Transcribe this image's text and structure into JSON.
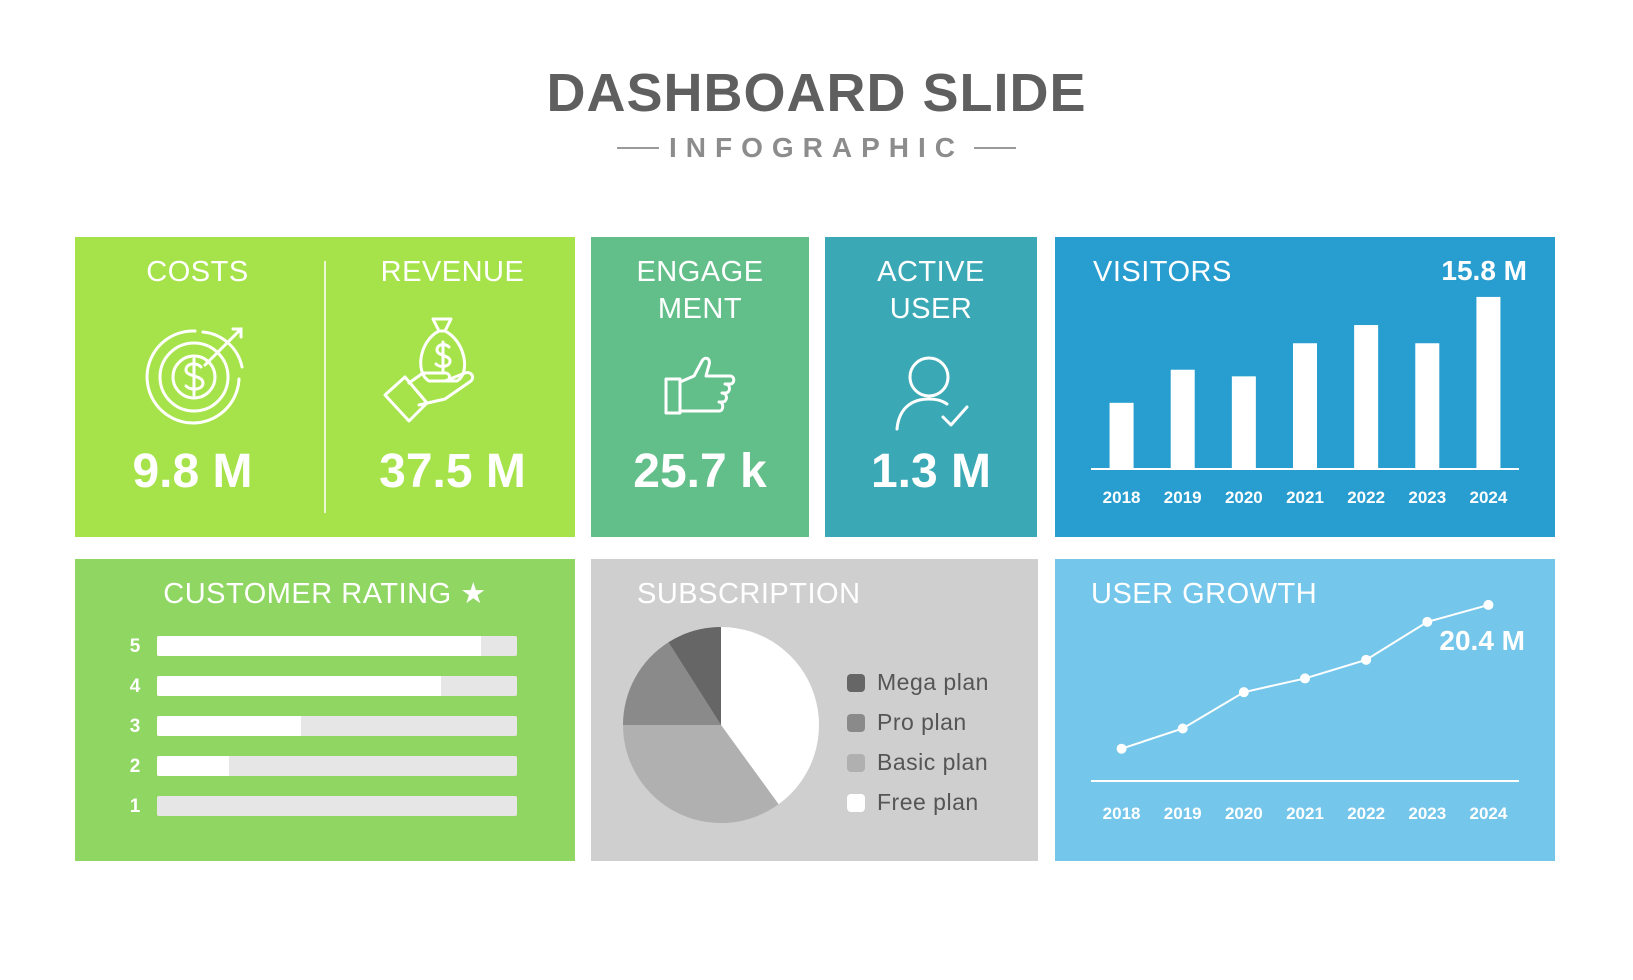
{
  "header": {
    "title": "DASHBOARD SLIDE",
    "subtitle": "INFOGRAPHIC"
  },
  "colors": {
    "costs_card": "#a6e34a",
    "engagement_card": "#63bf8a",
    "active_user_card": "#3aa9b5",
    "visitors_card": "#289ed0",
    "rating_card": "#8fd662",
    "subscription_card": "#cfcfcf",
    "growth_card": "#74c6ea"
  },
  "costs": {
    "label": "COSTS",
    "value": "9.8 M",
    "icon": "dollar-target-icon"
  },
  "revenue": {
    "label": "REVENUE",
    "value": "37.5 M",
    "icon": "money-bag-hand-icon"
  },
  "engagement": {
    "label_line1": "ENGAGE",
    "label_line2": "MENT",
    "value": "25.7 k",
    "icon": "thumbs-up-icon"
  },
  "active_user": {
    "label_line1": "ACTIVE",
    "label_line2": "USER",
    "value": "1.3 M",
    "icon": "user-check-icon"
  },
  "customer_rating": {
    "title": "CUSTOMER RATING ★"
  },
  "subscription": {
    "title": "SUBSCRIPTION"
  },
  "visitors": {
    "title": "VISITORS",
    "value": "15.8 M"
  },
  "user_growth": {
    "title": "USER GROWTH",
    "value": "20.4 M"
  },
  "chart_data": [
    {
      "id": "visitors",
      "type": "bar",
      "title": "VISITORS",
      "categories": [
        "2018",
        "2019",
        "2020",
        "2021",
        "2022",
        "2023",
        "2024"
      ],
      "values": [
        40,
        60,
        56,
        76,
        87,
        76,
        104
      ],
      "ylim": [
        0,
        110
      ],
      "grid": false
    },
    {
      "id": "user_growth",
      "type": "line",
      "title": "USER GROWTH",
      "categories": [
        "2018",
        "2019",
        "2020",
        "2021",
        "2022",
        "2023",
        "2024"
      ],
      "values": [
        4,
        6.5,
        11,
        12.7,
        15,
        19.7,
        21.8
      ],
      "ylim": [
        0,
        26
      ],
      "grid": false
    },
    {
      "id": "subscription",
      "type": "pie",
      "title": "SUBSCRIPTION",
      "labels": [
        "Free plan",
        "Basic plan",
        "Pro plan",
        "Mega plan"
      ],
      "values": [
        40,
        35,
        16,
        9
      ],
      "colors": [
        "#ffffff",
        "#b0b0b0",
        "#8a8a8a",
        "#666666"
      ]
    },
    {
      "id": "customer_rating",
      "type": "bar",
      "title": "CUSTOMER RATING ★",
      "orientation": "horizontal",
      "categories": [
        "5",
        "4",
        "3",
        "2",
        "1"
      ],
      "values": [
        90,
        79,
        40,
        20,
        0
      ],
      "xlim": [
        0,
        100
      ]
    }
  ]
}
